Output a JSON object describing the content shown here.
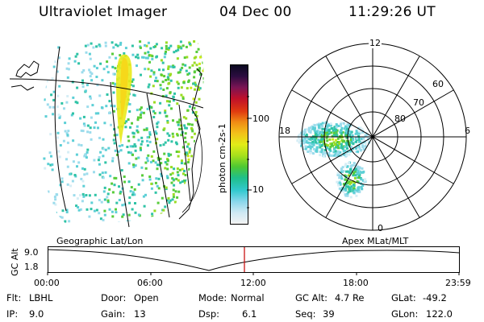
{
  "header": {
    "instrument": "Ultraviolet Imager",
    "date": "04 Dec 00",
    "time": "11:29:26 UT"
  },
  "geo_map": {
    "label": "Geographic Lat/Lon"
  },
  "polar_plot": {
    "label": "Apex  MLat/MLT",
    "mlt_labels": {
      "top": "12",
      "left": "18",
      "right": "6",
      "bottom": "0"
    },
    "lat_labels": [
      "60",
      "70",
      "80"
    ]
  },
  "colorbar": {
    "unit_label": "photon cm-2s-1",
    "tick_labels": [
      "100",
      "10"
    ],
    "colors": [
      "#f3f3f3",
      "#cfe9f4",
      "#8ad7ec",
      "#33c9cf",
      "#1fbf8a",
      "#4ec832",
      "#a6e01c",
      "#e2ec18",
      "#f2c21a",
      "#f08c14",
      "#e03a10",
      "#c0102a",
      "#7a1454",
      "#2c0c40",
      "#0a0a20"
    ]
  },
  "altitude_track": {
    "axis_label": "GC Alt",
    "y_ticks": [
      "9.0",
      "1.8"
    ],
    "x_ticks": [
      "00:00",
      "06:00",
      "12:00",
      "18:00",
      "23:59"
    ],
    "current_time_marker": "11:29:26",
    "marker_color": "#c81414"
  },
  "footer": {
    "row1": [
      {
        "label": "Flt:",
        "value": "LBHL"
      },
      {
        "label": "Door:",
        "value": "Open"
      },
      {
        "label": "Mode:",
        "value": "Normal"
      },
      {
        "label": "GC Alt:",
        "value": "4.7 Re"
      },
      {
        "label": "GLat:",
        "value": "-49.2"
      }
    ],
    "row2": [
      {
        "label": "IP:",
        "value": "9.0"
      },
      {
        "label": "Gain:",
        "value": "13"
      },
      {
        "label": "Dsp:",
        "value": "6.1"
      },
      {
        "label": "Seq:",
        "value": "39"
      },
      {
        "label": "GLon:",
        "value": "122.0"
      }
    ]
  }
}
